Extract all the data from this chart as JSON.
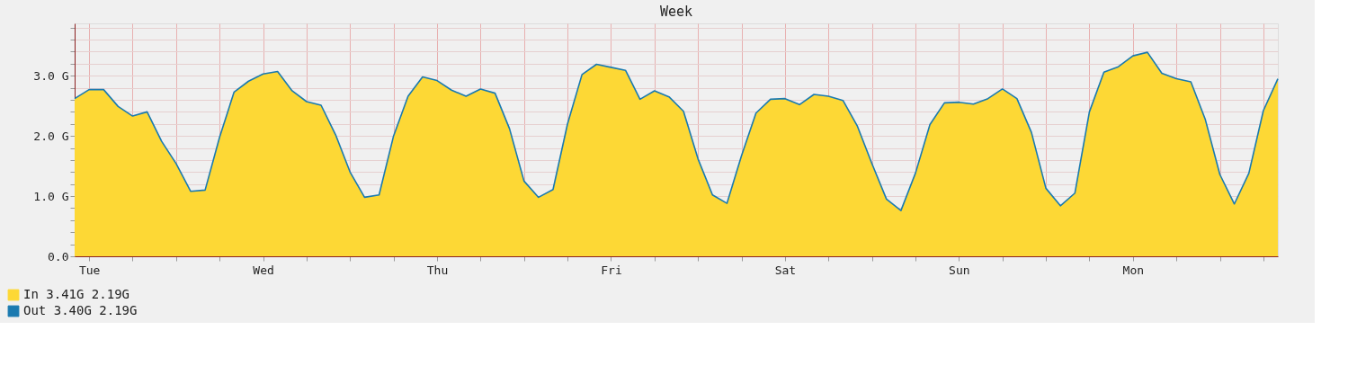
{
  "chart_data": {
    "type": "area",
    "title": "Week",
    "categories": [
      null,
      "Tue",
      null,
      null,
      null,
      null,
      null,
      null,
      null,
      null,
      null,
      null,
      null,
      "Wed",
      null,
      null,
      null,
      null,
      null,
      null,
      null,
      null,
      null,
      null,
      null,
      "Thu",
      null,
      null,
      null,
      null,
      null,
      null,
      null,
      null,
      null,
      null,
      null,
      "Fri",
      null,
      null,
      null,
      null,
      null,
      null,
      null,
      null,
      null,
      null,
      null,
      "Sat",
      null,
      null,
      null,
      null,
      null,
      null,
      null,
      null,
      null,
      null,
      null,
      "Sun",
      null,
      null,
      null,
      null,
      null,
      null,
      null,
      null,
      null,
      null,
      null,
      "Mon",
      null,
      null,
      null,
      null,
      null,
      null,
      null,
      null,
      null,
      null
    ],
    "ylim": [
      0,
      3.87
    ],
    "yticks": [
      {
        "value": 0,
        "label": "0.0"
      },
      {
        "value": 0.2,
        "label": null
      },
      {
        "value": 0.4,
        "label": null
      },
      {
        "value": 0.6,
        "label": null
      },
      {
        "value": 0.8,
        "label": null
      },
      {
        "value": 1,
        "label": "1.0 G"
      },
      {
        "value": 1.2,
        "label": null
      },
      {
        "value": 1.4,
        "label": null
      },
      {
        "value": 1.6,
        "label": null
      },
      {
        "value": 1.8,
        "label": null
      },
      {
        "value": 2,
        "label": "2.0 G"
      },
      {
        "value": 2.2,
        "label": null
      },
      {
        "value": 2.4,
        "label": null
      },
      {
        "value": 2.6,
        "label": null
      },
      {
        "value": 2.8,
        "label": null
      },
      {
        "value": 3,
        "label": "3.0 G"
      },
      {
        "value": 3.2,
        "label": null
      },
      {
        "value": 3.4,
        "label": null
      },
      {
        "value": 3.6,
        "label": null
      },
      {
        "value": 3.8,
        "label": null
      }
    ],
    "series": [
      {
        "name": "In   3.41G   2.19G",
        "color": "#fdd835",
        "values": [
          2.62,
          2.77,
          2.77,
          2.49,
          2.33,
          2.4,
          1.91,
          1.54,
          1.08,
          1.1,
          1.98,
          2.73,
          2.91,
          3.03,
          3.07,
          2.75,
          2.57,
          2.51,
          2.02,
          1.4,
          0.98,
          1.02,
          2.0,
          2.66,
          2.98,
          2.92,
          2.76,
          2.66,
          2.78,
          2.71,
          2.12,
          1.25,
          0.98,
          1.11,
          2.2,
          3.02,
          3.19,
          3.14,
          3.09,
          2.61,
          2.75,
          2.65,
          2.41,
          1.62,
          1.02,
          0.88,
          1.67,
          2.38,
          2.61,
          2.62,
          2.52,
          2.69,
          2.66,
          2.59,
          2.16,
          1.54,
          0.95,
          0.76,
          1.38,
          2.19,
          2.55,
          2.56,
          2.53,
          2.62,
          2.78,
          2.62,
          2.06,
          1.13,
          0.84,
          1.05,
          2.4,
          3.06,
          3.15,
          3.33,
          3.39,
          3.04,
          2.95,
          2.9,
          2.27,
          1.36,
          0.87,
          1.38,
          2.42,
          2.95
        ]
      },
      {
        "name": "Out   3.40G   2.19G",
        "type": "line",
        "color": "#1a7ab0",
        "values": [
          2.62,
          2.77,
          2.77,
          2.49,
          2.33,
          2.4,
          1.91,
          1.54,
          1.08,
          1.1,
          1.98,
          2.73,
          2.91,
          3.03,
          3.07,
          2.75,
          2.57,
          2.51,
          2.02,
          1.4,
          0.98,
          1.02,
          2.0,
          2.66,
          2.98,
          2.92,
          2.76,
          2.66,
          2.78,
          2.71,
          2.12,
          1.25,
          0.98,
          1.11,
          2.2,
          3.02,
          3.19,
          3.14,
          3.09,
          2.61,
          2.75,
          2.65,
          2.41,
          1.62,
          1.02,
          0.88,
          1.67,
          2.38,
          2.61,
          2.62,
          2.52,
          2.69,
          2.66,
          2.59,
          2.16,
          1.54,
          0.95,
          0.76,
          1.38,
          2.19,
          2.55,
          2.56,
          2.53,
          2.62,
          2.78,
          2.62,
          2.06,
          1.13,
          0.84,
          1.05,
          2.4,
          3.06,
          3.15,
          3.33,
          3.39,
          3.04,
          2.95,
          2.9,
          2.27,
          1.36,
          0.87,
          1.38,
          2.42,
          2.95
        ]
      }
    ],
    "grid": true,
    "legend": "bottom left"
  }
}
